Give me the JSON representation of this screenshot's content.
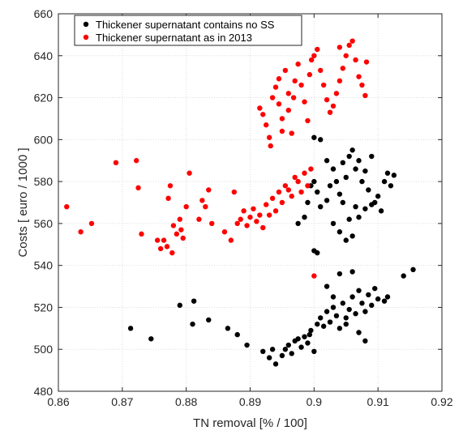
{
  "chart_data": {
    "type": "scatter",
    "xlabel": "TN removal [% / 100]",
    "ylabel": "Costs [ euro / 1000 ]",
    "xlim": [
      0.86,
      0.92
    ],
    "ylim": [
      480,
      660
    ],
    "xticks": [
      "0.86",
      "0.87",
      "0.88",
      "0.89",
      "0.9",
      "0.91",
      "0.92"
    ],
    "yticks": [
      "480",
      "500",
      "520",
      "540",
      "560",
      "580",
      "600",
      "620",
      "640",
      "660"
    ],
    "grid": true,
    "legend_position": "top-left",
    "series": [
      {
        "name": "Thickener supernatant contains no SS",
        "color": "#000000",
        "points": [
          [
            0.8713,
            510
          ],
          [
            0.8745,
            505
          ],
          [
            0.879,
            521
          ],
          [
            0.881,
            512
          ],
          [
            0.8812,
            523
          ],
          [
            0.8835,
            514
          ],
          [
            0.8865,
            510
          ],
          [
            0.888,
            507
          ],
          [
            0.8895,
            502
          ],
          [
            0.892,
            499
          ],
          [
            0.893,
            496
          ],
          [
            0.8935,
            500
          ],
          [
            0.894,
            493
          ],
          [
            0.895,
            497
          ],
          [
            0.8955,
            500
          ],
          [
            0.896,
            502
          ],
          [
            0.8965,
            498
          ],
          [
            0.897,
            504
          ],
          [
            0.8975,
            505
          ],
          [
            0.898,
            501
          ],
          [
            0.8985,
            506
          ],
          [
            0.899,
            503
          ],
          [
            0.8993,
            507
          ],
          [
            0.8995,
            509
          ],
          [
            0.9,
            499
          ],
          [
            0.9005,
            512
          ],
          [
            0.901,
            515
          ],
          [
            0.9015,
            511
          ],
          [
            0.902,
            518
          ],
          [
            0.9025,
            513
          ],
          [
            0.903,
            520
          ],
          [
            0.9035,
            516
          ],
          [
            0.904,
            510
          ],
          [
            0.9045,
            522
          ],
          [
            0.905,
            515
          ],
          [
            0.9055,
            519
          ],
          [
            0.906,
            525
          ],
          [
            0.9065,
            517
          ],
          [
            0.907,
            528
          ],
          [
            0.9075,
            522
          ],
          [
            0.908,
            518
          ],
          [
            0.9085,
            526
          ],
          [
            0.909,
            521
          ],
          [
            0.9095,
            529
          ],
          [
            0.91,
            524
          ],
          [
            0.911,
            523
          ],
          [
            0.9115,
            525
          ],
          [
            0.914,
            535
          ],
          [
            0.9155,
            538
          ],
          [
            0.906,
            537
          ],
          [
            0.904,
            536
          ],
          [
            0.902,
            530
          ],
          [
            0.903,
            525
          ],
          [
            0.905,
            512
          ],
          [
            0.907,
            508
          ],
          [
            0.908,
            504
          ],
          [
            0.9,
            547
          ],
          [
            0.9005,
            546
          ],
          [
            0.8975,
            560
          ],
          [
            0.8985,
            563
          ],
          [
            0.899,
            570
          ],
          [
            0.8995,
            578
          ],
          [
            0.9,
            580
          ],
          [
            0.9005,
            575
          ],
          [
            0.901,
            568
          ],
          [
            0.902,
            571
          ],
          [
            0.9025,
            578
          ],
          [
            0.903,
            586
          ],
          [
            0.9035,
            580
          ],
          [
            0.904,
            574
          ],
          [
            0.9045,
            589
          ],
          [
            0.905,
            582
          ],
          [
            0.9055,
            592
          ],
          [
            0.906,
            595
          ],
          [
            0.9065,
            586
          ],
          [
            0.907,
            590
          ],
          [
            0.9075,
            580
          ],
          [
            0.908,
            585
          ],
          [
            0.9085,
            576
          ],
          [
            0.909,
            592
          ],
          [
            0.9095,
            570
          ],
          [
            0.91,
            573
          ],
          [
            0.9105,
            566
          ],
          [
            0.911,
            580
          ],
          [
            0.9115,
            584
          ],
          [
            0.912,
            578
          ],
          [
            0.9125,
            583
          ],
          [
            0.903,
            560
          ],
          [
            0.904,
            556
          ],
          [
            0.905,
            552
          ],
          [
            0.906,
            554
          ],
          [
            0.907,
            563
          ],
          [
            0.908,
            567
          ],
          [
            0.909,
            569
          ],
          [
            0.9,
            601
          ],
          [
            0.901,
            600
          ],
          [
            0.902,
            590
          ],
          [
            0.9045,
            570
          ],
          [
            0.9055,
            562
          ],
          [
            0.9065,
            568
          ]
        ]
      },
      {
        "name": "Thickener supernatant as in 2013",
        "color": "#ff0000",
        "points": [
          [
            0.8613,
            568
          ],
          [
            0.8635,
            556
          ],
          [
            0.8652,
            560
          ],
          [
            0.869,
            589
          ],
          [
            0.8722,
            590
          ],
          [
            0.8725,
            577
          ],
          [
            0.873,
            555
          ],
          [
            0.8755,
            552
          ],
          [
            0.876,
            548
          ],
          [
            0.8765,
            552
          ],
          [
            0.877,
            549
          ],
          [
            0.8772,
            572
          ],
          [
            0.8775,
            578
          ],
          [
            0.8778,
            546
          ],
          [
            0.878,
            559
          ],
          [
            0.8785,
            555
          ],
          [
            0.879,
            562
          ],
          [
            0.8792,
            557
          ],
          [
            0.8795,
            553
          ],
          [
            0.88,
            568
          ],
          [
            0.8805,
            584
          ],
          [
            0.882,
            562
          ],
          [
            0.8825,
            571
          ],
          [
            0.883,
            568
          ],
          [
            0.8835,
            576
          ],
          [
            0.884,
            560
          ],
          [
            0.886,
            556
          ],
          [
            0.887,
            552
          ],
          [
            0.8875,
            575
          ],
          [
            0.888,
            560
          ],
          [
            0.8885,
            562
          ],
          [
            0.889,
            566
          ],
          [
            0.8895,
            559
          ],
          [
            0.89,
            563
          ],
          [
            0.8905,
            567
          ],
          [
            0.891,
            561
          ],
          [
            0.8915,
            564
          ],
          [
            0.892,
            558
          ],
          [
            0.8925,
            569
          ],
          [
            0.893,
            564
          ],
          [
            0.8935,
            572
          ],
          [
            0.894,
            566
          ],
          [
            0.8945,
            575
          ],
          [
            0.895,
            570
          ],
          [
            0.8955,
            578
          ],
          [
            0.896,
            576
          ],
          [
            0.8965,
            573
          ],
          [
            0.897,
            582
          ],
          [
            0.8975,
            580
          ],
          [
            0.898,
            575
          ],
          [
            0.8985,
            584
          ],
          [
            0.899,
            578
          ],
          [
            0.8995,
            586
          ],
          [
            0.9,
            535
          ],
          [
            0.8915,
            615
          ],
          [
            0.892,
            612
          ],
          [
            0.8925,
            607
          ],
          [
            0.893,
            601
          ],
          [
            0.8932,
            597
          ],
          [
            0.8935,
            620
          ],
          [
            0.894,
            625
          ],
          [
            0.8945,
            617
          ],
          [
            0.895,
            610
          ],
          [
            0.8955,
            633
          ],
          [
            0.896,
            614
          ],
          [
            0.8965,
            603
          ],
          [
            0.8968,
            620
          ],
          [
            0.897,
            628
          ],
          [
            0.8975,
            636
          ],
          [
            0.898,
            626
          ],
          [
            0.8985,
            618
          ],
          [
            0.899,
            609
          ],
          [
            0.8993,
            631
          ],
          [
            0.8996,
            638
          ],
          [
            0.9,
            640
          ],
          [
            0.9005,
            643
          ],
          [
            0.901,
            633
          ],
          [
            0.9015,
            626
          ],
          [
            0.902,
            619
          ],
          [
            0.9025,
            613
          ],
          [
            0.903,
            616
          ],
          [
            0.9035,
            622
          ],
          [
            0.904,
            628
          ],
          [
            0.9045,
            634
          ],
          [
            0.905,
            640
          ],
          [
            0.9055,
            645
          ],
          [
            0.906,
            647
          ],
          [
            0.9065,
            638
          ],
          [
            0.907,
            630
          ],
          [
            0.9075,
            626
          ],
          [
            0.908,
            621
          ],
          [
            0.9082,
            637
          ],
          [
            0.904,
            644
          ],
          [
            0.895,
            604
          ],
          [
            0.8945,
            629
          ],
          [
            0.896,
            622
          ]
        ]
      }
    ]
  }
}
